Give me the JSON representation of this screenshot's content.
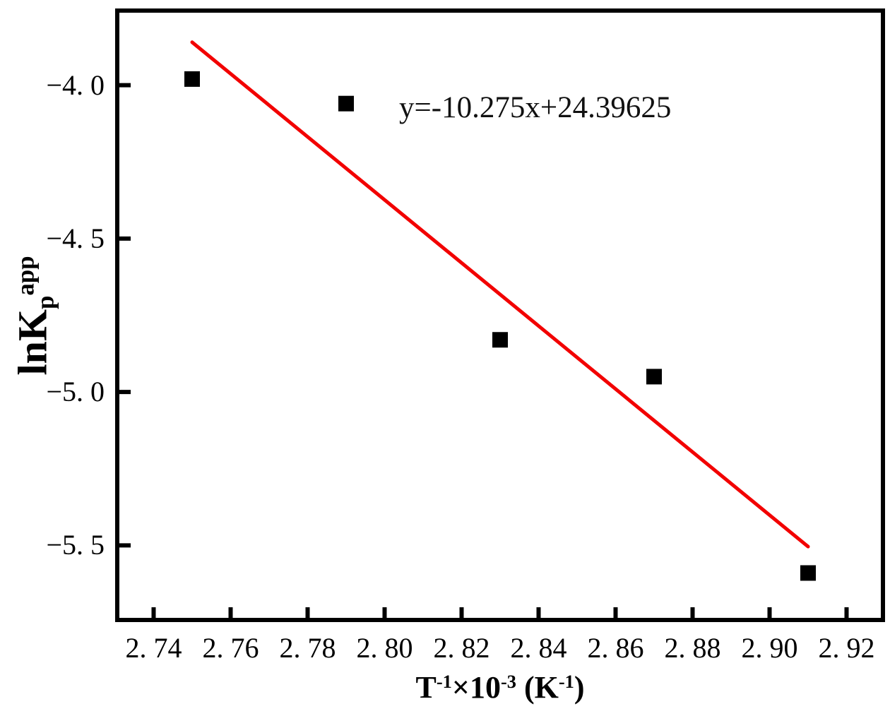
{
  "figure": {
    "background": "#ffffff",
    "axis_color": "#000000"
  },
  "chart_data": {
    "type": "scatter",
    "title": "",
    "xlabel_plain": "T^-1 x 10^-3 (K^-1)",
    "xlabel_parts": [
      {
        "t": "T"
      },
      {
        "t": "-1",
        "v": "sup"
      },
      {
        "t": "×10"
      },
      {
        "t": "-3",
        "v": "sup"
      },
      {
        "t": " ("
      },
      {
        "t": "K"
      },
      {
        "t": "-1",
        "v": "sup"
      },
      {
        "t": ")"
      }
    ],
    "ylabel_plain": "lnKp^app",
    "ylabel_parts": [
      {
        "t": "lnK"
      },
      {
        "t": "p",
        "v": "sub"
      },
      {
        "t": "app",
        "v": "sup"
      }
    ],
    "xlim": [
      2.73,
      2.93
    ],
    "ylim": [
      -5.75,
      -3.75
    ],
    "grid": false,
    "legend": null,
    "x_ticks": [
      {
        "value": 2.74,
        "label": "2. 74"
      },
      {
        "value": 2.76,
        "label": "2. 76"
      },
      {
        "value": 2.78,
        "label": "2. 78"
      },
      {
        "value": 2.8,
        "label": "2. 80"
      },
      {
        "value": 2.82,
        "label": "2. 82"
      },
      {
        "value": 2.84,
        "label": "2. 84"
      },
      {
        "value": 2.86,
        "label": "2. 86"
      },
      {
        "value": 2.88,
        "label": "2. 88"
      },
      {
        "value": 2.9,
        "label": "2. 90"
      },
      {
        "value": 2.92,
        "label": "2. 92"
      }
    ],
    "y_ticks": [
      {
        "value": -4.0,
        "label": "−4. 0"
      },
      {
        "value": -4.5,
        "label": "−4. 5"
      },
      {
        "value": -5.0,
        "label": "−5. 0"
      },
      {
        "value": -5.5,
        "label": "−5. 5"
      }
    ],
    "points": [
      {
        "x": 2.75,
        "y": -3.98
      },
      {
        "x": 2.79,
        "y": -4.06
      },
      {
        "x": 2.83,
        "y": -4.83
      },
      {
        "x": 2.87,
        "y": -4.95
      },
      {
        "x": 2.91,
        "y": -5.59
      }
    ],
    "marker": {
      "shape": "square",
      "color": "#000000"
    },
    "fit": {
      "slope": -10.275,
      "intercept": 24.39625,
      "x_start": 2.75,
      "x_end": 2.91,
      "color": "#f20000",
      "equation_label": "y=-10.275x+24.39625"
    }
  }
}
